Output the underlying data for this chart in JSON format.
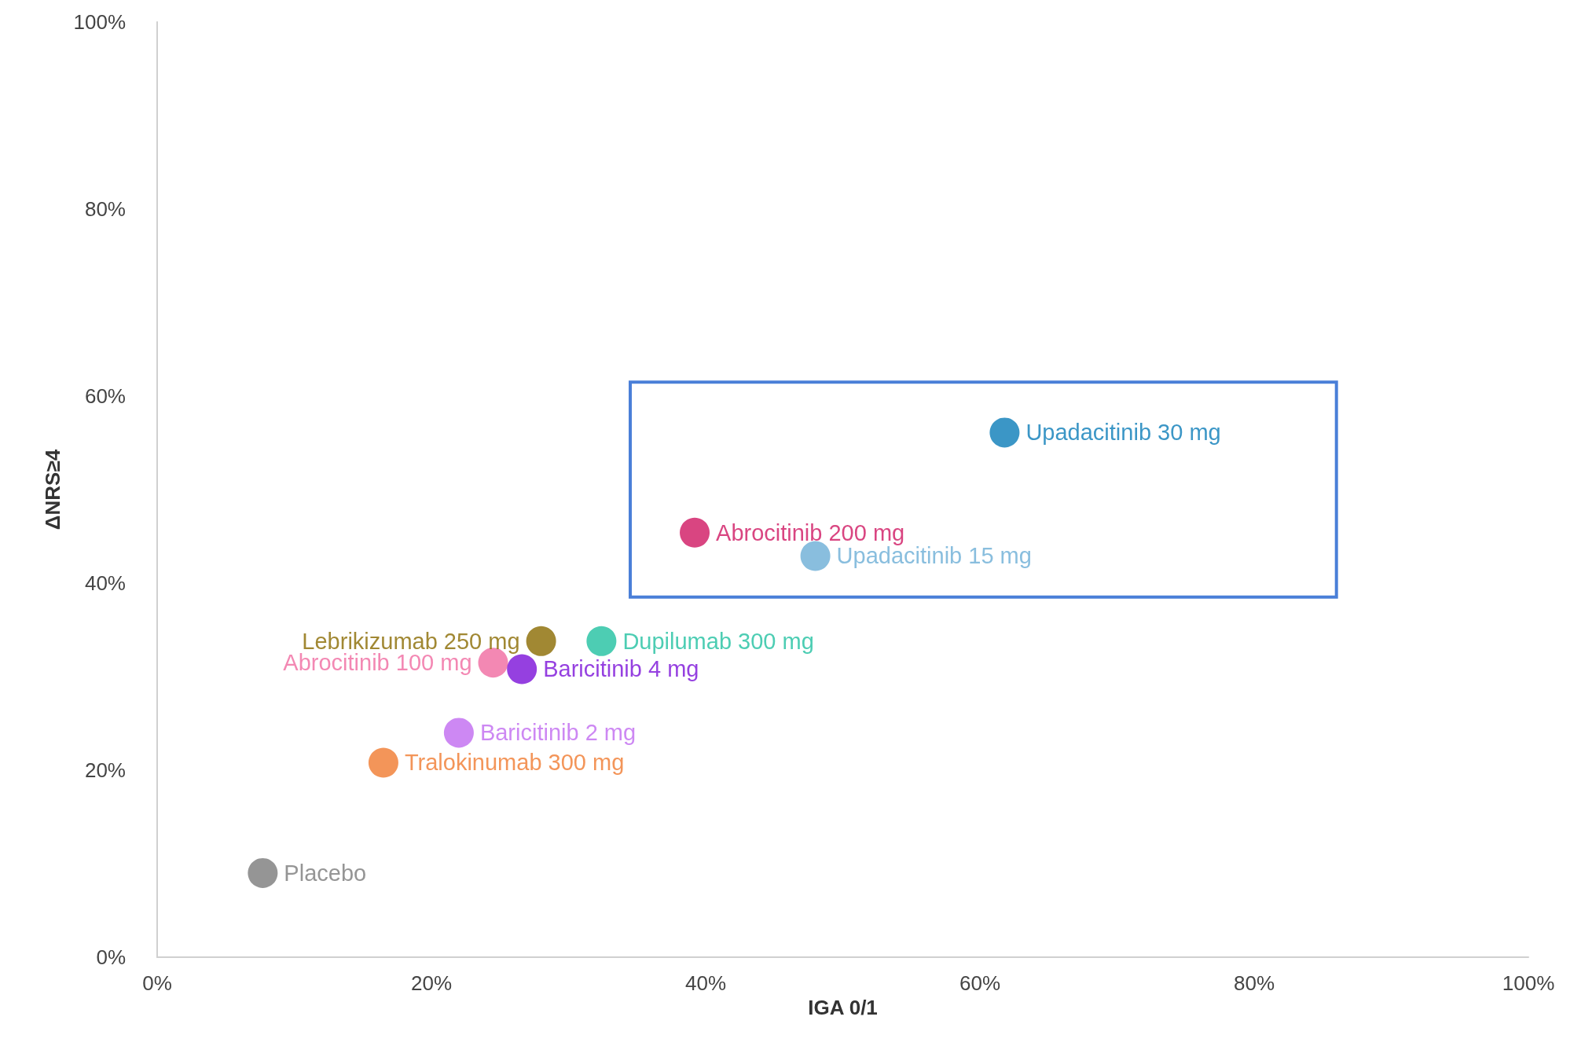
{
  "chart_data": {
    "type": "scatter",
    "xlabel": "IGA 0/1",
    "ylabel": "ΔNRS≥4",
    "xlim": [
      0,
      100
    ],
    "ylim": [
      0,
      100
    ],
    "xticks": [
      {
        "value": 0,
        "label": "0%"
      },
      {
        "value": 20,
        "label": "20%"
      },
      {
        "value": 40,
        "label": "40%"
      },
      {
        "value": 60,
        "label": "60%"
      },
      {
        "value": 80,
        "label": "80%"
      },
      {
        "value": 100,
        "label": "100%"
      }
    ],
    "yticks": [
      {
        "value": 0,
        "label": "0%"
      },
      {
        "value": 20,
        "label": "20%"
      },
      {
        "value": 40,
        "label": "40%"
      },
      {
        "value": 60,
        "label": "60%"
      },
      {
        "value": 80,
        "label": "80%"
      },
      {
        "value": 100,
        "label": "100%"
      }
    ],
    "grid": false,
    "legend": false,
    "marker": "circle",
    "series": [
      {
        "name": "Upadacitinib 30 mg",
        "color": "#0a7cb8",
        "x": [
          61.8
        ],
        "values": [
          56.1
        ]
      },
      {
        "name": "Abrocitinib 200 mg",
        "color": "#d01662",
        "x": [
          39.2
        ],
        "values": [
          45.4
        ]
      },
      {
        "name": "Upadacitinib 15 mg",
        "color": "#6baed6",
        "x": [
          48.0
        ],
        "values": [
          42.9
        ]
      },
      {
        "name": "Lebrikizumab 250 mg",
        "color": "#8a6a00",
        "x": [
          28.0
        ],
        "values": [
          33.8
        ]
      },
      {
        "name": "Dupilumab 300 mg",
        "color": "#20c0a0",
        "x": [
          32.4
        ],
        "values": [
          33.8
        ]
      },
      {
        "name": "Abrocitinib 100 mg",
        "color": "#f06aa0",
        "x": [
          24.5
        ],
        "values": [
          31.5
        ]
      },
      {
        "name": "Baricitinib 4 mg",
        "color": "#7a10d8",
        "x": [
          26.6
        ],
        "values": [
          30.8
        ]
      },
      {
        "name": "Baricitinib 2 mg",
        "color": "#c06af0",
        "x": [
          22.0
        ],
        "values": [
          24.0
        ]
      },
      {
        "name": "Tralokinumab 300 mg",
        "color": "#f07a30",
        "x": [
          16.5
        ],
        "values": [
          20.8
        ]
      },
      {
        "name": "Placebo",
        "color": "#7a7a7a",
        "x": [
          7.7
        ],
        "values": [
          9.0
        ]
      }
    ]
  }
}
